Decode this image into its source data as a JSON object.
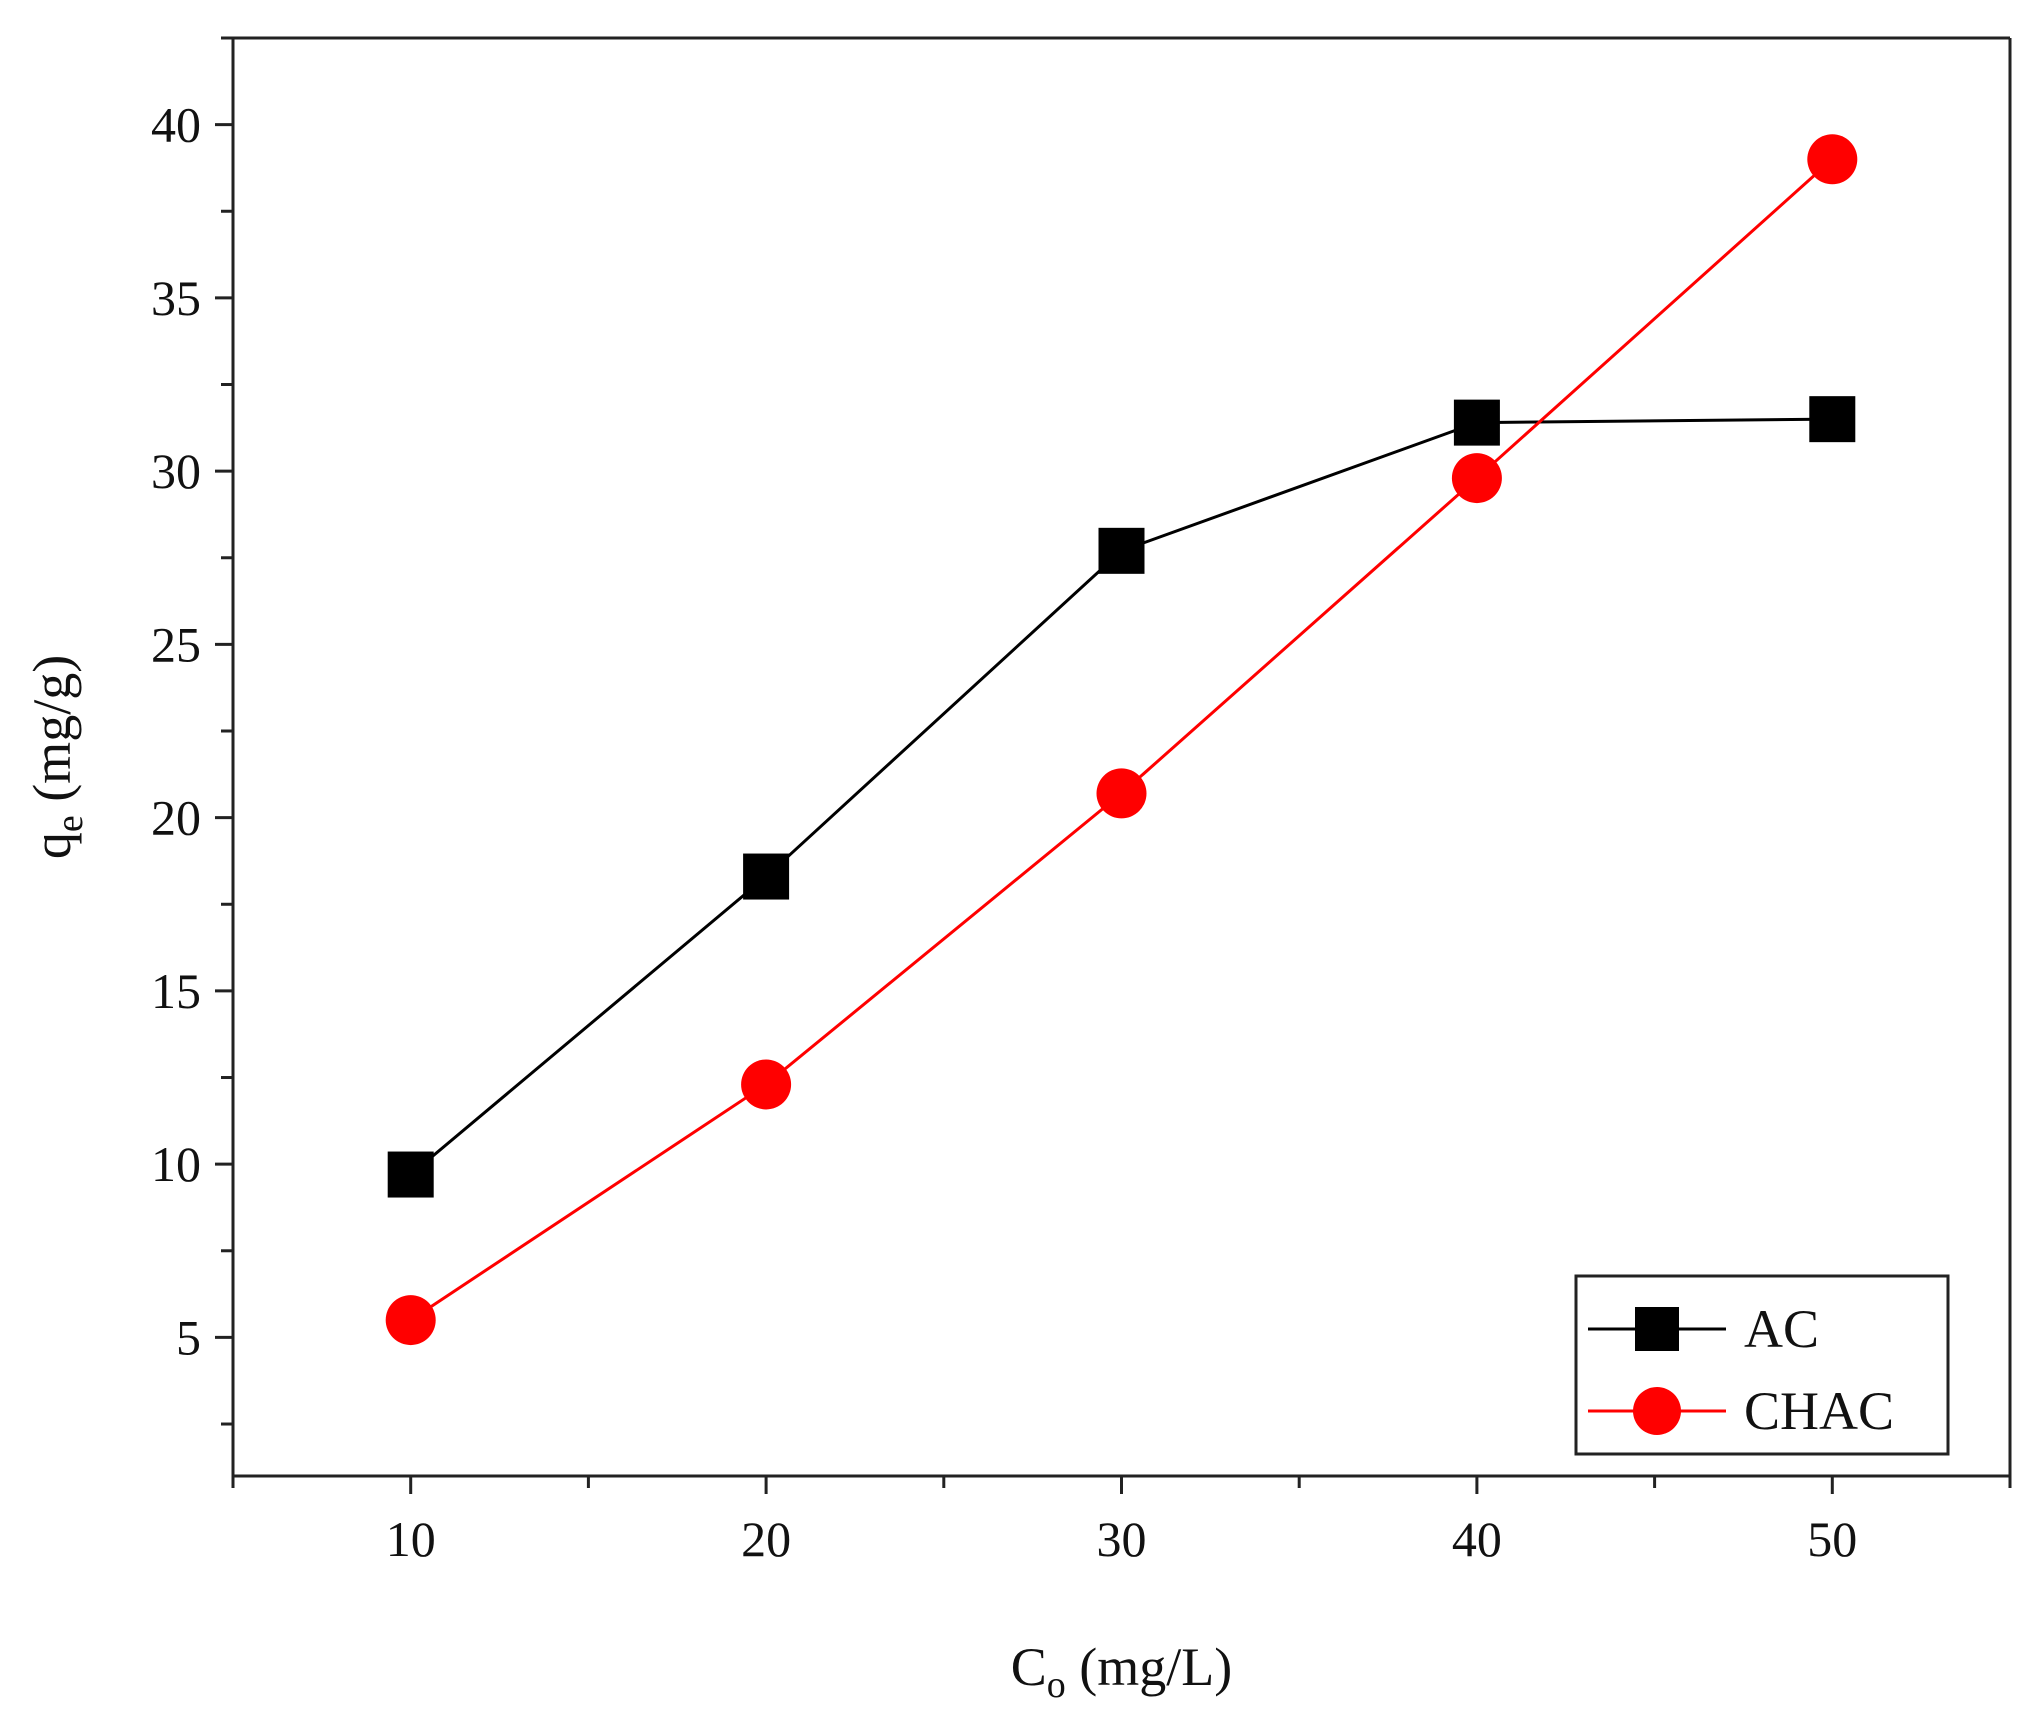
{
  "chart_data": {
    "type": "line",
    "xlabel": {
      "main": "C",
      "sub": "o",
      "rest": " (mg/L)"
    },
    "ylabel": {
      "main": "q",
      "sub": "e",
      "rest": " (mg/g)"
    },
    "xlim": [
      5,
      55
    ],
    "ylim": [
      1,
      42.5
    ],
    "x_ticks": [
      "10",
      "20",
      "30",
      "40",
      "50"
    ],
    "y_ticks": [
      "5",
      "10",
      "15",
      "20",
      "25",
      "30",
      "35",
      "40"
    ],
    "x": [
      10,
      20,
      30,
      40,
      50
    ],
    "series": [
      {
        "name": "AC",
        "values": [
          9.7,
          18.3,
          27.7,
          31.4,
          31.5
        ],
        "color": "#000000",
        "marker": "square"
      },
      {
        "name": "CHAC",
        "values": [
          5.5,
          12.3,
          20.7,
          29.8,
          39.0
        ],
        "color": "#ff0000",
        "marker": "circle"
      }
    ],
    "legend": "bottom-right",
    "grid": false
  }
}
